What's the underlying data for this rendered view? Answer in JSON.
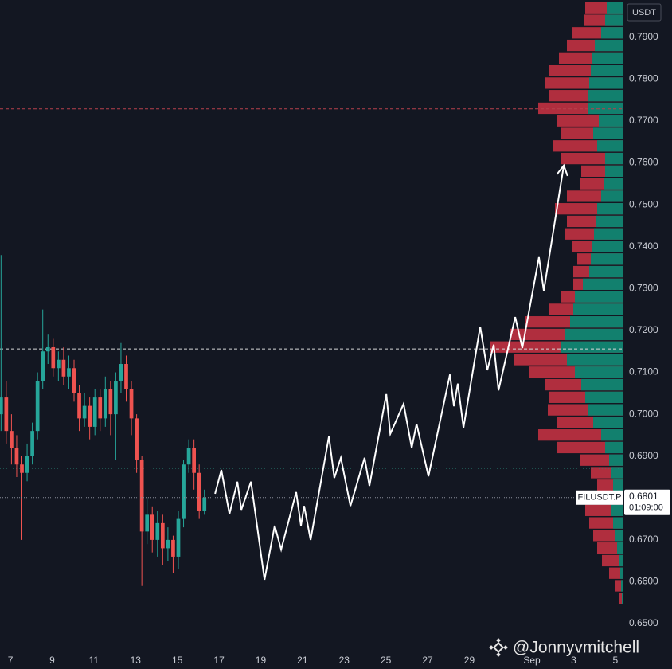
{
  "chart_data": {
    "type": "candlestick",
    "symbol": "FILUSDT.P",
    "currency": "USDT",
    "countdown": "01:09:00",
    "watermark": "@Jonnyvmitchell",
    "up_color": "#26a69a",
    "down_color": "#ef5350",
    "grid": false,
    "x": [
      6.55,
      6.8,
      7.05,
      7.3,
      7.55,
      7.8,
      8.05,
      8.3,
      8.55,
      8.8,
      9.05,
      9.3,
      9.55,
      9.8,
      10.05,
      10.3,
      10.55,
      10.8,
      11.05,
      11.3,
      11.55,
      11.8,
      12.05,
      12.3,
      12.55,
      12.8,
      13.05,
      13.3,
      13.55,
      13.8,
      14.05,
      14.3,
      14.55,
      14.8,
      15.05,
      15.3,
      15.55,
      15.8,
      16.05,
      16.3
    ],
    "open": [
      0.7,
      0.704,
      0.696,
      0.692,
      0.688,
      0.686,
      0.69,
      0.696,
      0.708,
      0.715,
      0.716,
      0.711,
      0.713,
      0.709,
      0.711,
      0.705,
      0.699,
      0.702,
      0.697,
      0.704,
      0.699,
      0.706,
      0.7,
      0.708,
      0.712,
      0.706,
      0.699,
      0.689,
      0.672,
      0.676,
      0.67,
      0.674,
      0.668,
      0.67,
      0.666,
      0.675,
      0.688,
      0.692,
      0.686,
      0.677
    ],
    "high": [
      0.738,
      0.708,
      0.7,
      0.695,
      0.69,
      0.693,
      0.698,
      0.71,
      0.725,
      0.719,
      0.718,
      0.715,
      0.716,
      0.714,
      0.713,
      0.707,
      0.705,
      0.704,
      0.706,
      0.706,
      0.709,
      0.708,
      0.71,
      0.717,
      0.714,
      0.708,
      0.7,
      0.69,
      0.68,
      0.678,
      0.677,
      0.676,
      0.673,
      0.671,
      0.677,
      0.689,
      0.694,
      0.694,
      0.688,
      0.682
    ],
    "low": [
      0.696,
      0.693,
      0.688,
      0.685,
      0.67,
      0.684,
      0.688,
      0.694,
      0.706,
      0.712,
      0.709,
      0.708,
      0.707,
      0.706,
      0.703,
      0.696,
      0.697,
      0.694,
      0.695,
      0.696,
      0.697,
      0.695,
      0.689,
      0.705,
      0.703,
      0.695,
      0.686,
      0.659,
      0.669,
      0.667,
      0.666,
      0.664,
      0.665,
      0.662,
      0.663,
      0.673,
      0.686,
      0.682,
      0.675,
      0.676
    ],
    "close": [
      0.704,
      0.696,
      0.692,
      0.688,
      0.686,
      0.69,
      0.696,
      0.708,
      0.715,
      0.716,
      0.711,
      0.713,
      0.709,
      0.711,
      0.705,
      0.699,
      0.702,
      0.697,
      0.704,
      0.699,
      0.706,
      0.7,
      0.708,
      0.712,
      0.706,
      0.699,
      0.689,
      0.672,
      0.676,
      0.67,
      0.674,
      0.668,
      0.67,
      0.666,
      0.675,
      0.688,
      0.692,
      0.686,
      0.677,
      0.6801
    ],
    "xlim": [
      6.5,
      36.35
    ],
    "xticks": [
      7,
      9,
      11,
      13,
      15,
      17,
      19,
      21,
      23,
      25,
      27,
      29,
      {
        "value": 32,
        "label": "Sep"
      },
      {
        "value": 34,
        "label": "3"
      },
      {
        "value": 36,
        "label": "5"
      }
    ],
    "ylim": [
      0.6445,
      0.7989
    ],
    "yticks": [
      {
        "value": 0.65,
        "label": "0.6500"
      },
      {
        "value": 0.66,
        "label": "0.6600"
      },
      {
        "value": 0.67,
        "label": "0.6700"
      },
      {
        "value": 0.68,
        "label": "0.6800"
      },
      {
        "value": 0.69,
        "label": "0.6900"
      },
      {
        "value": 0.7,
        "label": "0.7000"
      },
      {
        "value": 0.71,
        "label": "0.7100"
      },
      {
        "value": 0.72,
        "label": "0.7200"
      },
      {
        "value": 0.73,
        "label": "0.7300"
      },
      {
        "value": 0.74,
        "label": "0.7400"
      },
      {
        "value": 0.75,
        "label": "0.7500"
      },
      {
        "value": 0.76,
        "label": "0.7600"
      },
      {
        "value": 0.77,
        "label": "0.7700"
      },
      {
        "value": 0.78,
        "label": "0.7800"
      },
      {
        "value": 0.79,
        "label": "0.7900"
      }
    ],
    "levels": [
      {
        "value": 0.7729,
        "color": "#b8404c",
        "style": "dashed"
      },
      {
        "value": 0.7156,
        "color": "#d8d8d8",
        "style": "dashed"
      },
      {
        "value": 0.6871,
        "color": "#2a8c7c",
        "style": "dotted"
      }
    ],
    "projection": {
      "color": "#ffffff",
      "x": [
        16.81,
        17.11,
        17.5,
        17.88,
        18.07,
        18.53,
        19.18,
        19.67,
        19.98,
        20.7,
        20.93,
        21.08,
        21.39,
        22.27,
        22.53,
        22.84,
        23.3,
        23.98,
        24.21,
        25.02,
        25.21,
        25.85,
        26.24,
        26.47,
        27.04,
        28.07,
        28.26,
        28.45,
        28.72,
        29.52,
        29.86,
        30.17,
        30.4,
        31.2,
        31.54,
        32.34,
        32.57,
        33.53
      ],
      "values": [
        0.681,
        0.6867,
        0.6762,
        0.6839,
        0.6772,
        0.6839,
        0.6605,
        0.6734,
        0.6677,
        0.6814,
        0.6734,
        0.6781,
        0.67,
        0.6947,
        0.6848,
        0.6896,
        0.6781,
        0.6896,
        0.6829,
        0.7048,
        0.6953,
        0.7025,
        0.692,
        0.6977,
        0.6852,
        0.7095,
        0.7019,
        0.7073,
        0.6968,
        0.7209,
        0.7105,
        0.7166,
        0.7057,
        0.7232,
        0.7158,
        0.7375,
        0.7295,
        0.7594
      ]
    },
    "volume_profile": {
      "total_color": "#b02e3e",
      "buy_color": "#12806e",
      "prices": [
        0.797,
        0.794,
        0.791,
        0.788,
        0.785,
        0.782,
        0.779,
        0.776,
        0.773,
        0.77,
        0.767,
        0.764,
        0.761,
        0.758,
        0.755,
        0.752,
        0.749,
        0.746,
        0.743,
        0.74,
        0.737,
        0.734,
        0.731,
        0.728,
        0.725,
        0.722,
        0.719,
        0.716,
        0.713,
        0.71,
        0.707,
        0.704,
        0.701,
        0.698,
        0.695,
        0.692,
        0.689,
        0.686,
        0.683,
        0.68,
        0.677,
        0.674,
        0.671,
        0.668,
        0.665,
        0.662,
        0.659,
        0.656
      ],
      "total": [
        47,
        48,
        64,
        70,
        80,
        92,
        97,
        92,
        106,
        82,
        77,
        87,
        77,
        52,
        54,
        70,
        85,
        70,
        72,
        64,
        57,
        62,
        62,
        77,
        92,
        122,
        142,
        167,
        137,
        117,
        97,
        92,
        94,
        82,
        106,
        82,
        54,
        40,
        32,
        27,
        47,
        42,
        37,
        32,
        26,
        17,
        10,
        4
      ],
      "buy": [
        20,
        22,
        27,
        35,
        38,
        40,
        42,
        43,
        44,
        30,
        37,
        32,
        22,
        22,
        24,
        27,
        32,
        34,
        36,
        38,
        40,
        42,
        50,
        60,
        62,
        66,
        72,
        77,
        70,
        60,
        52,
        47,
        44,
        37,
        27,
        22,
        17,
        14,
        12,
        12,
        14,
        12,
        9,
        7,
        5,
        3,
        2,
        1
      ]
    }
  }
}
